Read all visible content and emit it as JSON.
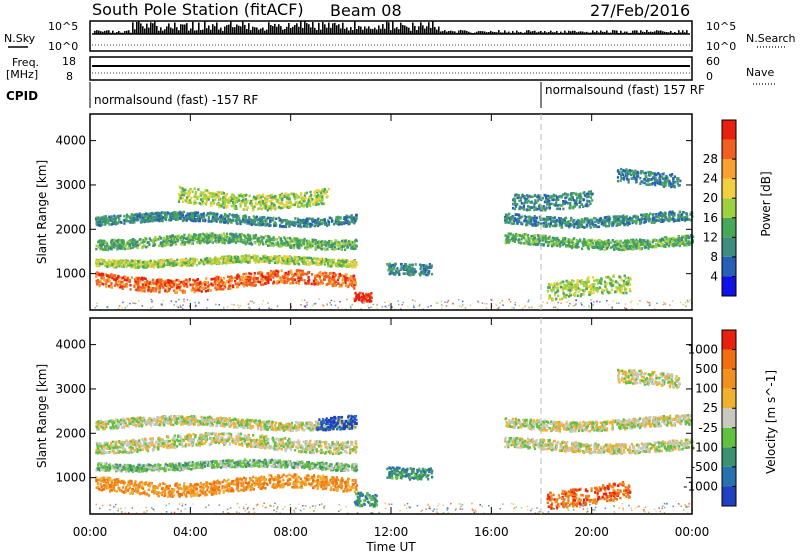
{
  "header": {
    "station": "South Pole Station (fitACF)",
    "beam": "Beam 08",
    "date": "27/Feb/2016"
  },
  "top_panels": {
    "nsky_label": "N.Sky",
    "nsky_ticks": [
      "10^5",
      "10^0"
    ],
    "nsearch_label": "N.Search",
    "nsearch_ticks": [
      "10^5",
      "10^0"
    ],
    "freq_label_1": "Freq.",
    "freq_label_2": "[MHz]",
    "freq_ticks": [
      "18",
      "8"
    ],
    "nave_label": "Nave",
    "nave_ticks": [
      "60",
      "0"
    ],
    "cpid_label": "CPID",
    "cpid_left": "normalsound (fast) -157 RF",
    "cpid_right": "normalsound (fast) 157 RF"
  },
  "chart_data": [
    {
      "type": "heatmap",
      "name": "power",
      "ylabel": "Slant Range [km]",
      "xlabel": "Time UT",
      "x_ticks": [
        "00:00",
        "04:00",
        "08:00",
        "12:00",
        "16:00",
        "20:00",
        "00:00"
      ],
      "x_range_hours": [
        0,
        24
      ],
      "y_range_km": [
        180,
        4600
      ],
      "y_ticks": [
        1000,
        2000,
        3000,
        4000
      ],
      "colorbar": {
        "label": "Power [dB]",
        "ticks": [
          "4",
          "8",
          "12",
          "16",
          "20",
          "24",
          "28"
        ],
        "colors": [
          "#1010e8",
          "#2860b8",
          "#3c8c80",
          "#48a858",
          "#a0d040",
          "#f0d040",
          "#f8a030",
          "#f06020",
          "#e82010"
        ]
      },
      "bands": [
        {
          "t0": 0.2,
          "t1": 10.6,
          "r_center": 850,
          "r_width": 300,
          "level": 7
        },
        {
          "t0": 0.2,
          "t1": 10.6,
          "r_center": 1300,
          "r_width": 160,
          "level": 4
        },
        {
          "t0": 0.2,
          "t1": 10.6,
          "r_center": 1750,
          "r_width": 220,
          "level": 3
        },
        {
          "t0": 0.2,
          "t1": 10.6,
          "r_center": 2250,
          "r_width": 200,
          "level": 2
        },
        {
          "t0": 3.5,
          "t1": 9.5,
          "r_center": 2750,
          "r_width": 350,
          "level": 4
        },
        {
          "t0": 10.5,
          "t1": 11.2,
          "r_center": 450,
          "r_width": 200,
          "level": 8
        },
        {
          "t0": 11.8,
          "t1": 13.6,
          "r_center": 1200,
          "r_width": 250,
          "level": 2
        },
        {
          "t0": 16.5,
          "t1": 24.0,
          "r_center": 1750,
          "r_width": 220,
          "level": 3
        },
        {
          "t0": 16.5,
          "t1": 24.0,
          "r_center": 2250,
          "r_width": 220,
          "level": 2
        },
        {
          "t0": 16.8,
          "t1": 20.0,
          "r_center": 2750,
          "r_width": 350,
          "level": 2
        },
        {
          "t0": 18.2,
          "t1": 21.5,
          "r_center": 650,
          "r_width": 400,
          "level": 4
        },
        {
          "t0": 21.0,
          "t1": 23.5,
          "r_center": 3200,
          "r_width": 300,
          "level": 2
        }
      ]
    },
    {
      "type": "heatmap",
      "name": "velocity",
      "ylabel": "Slant Range [km]",
      "xlabel": "Time UT",
      "x_ticks": [
        "00:00",
        "04:00",
        "08:00",
        "12:00",
        "16:00",
        "20:00",
        "00:00"
      ],
      "x_range_hours": [
        0,
        24
      ],
      "y_range_km": [
        180,
        4600
      ],
      "y_ticks": [
        1000,
        2000,
        3000,
        4000
      ],
      "colorbar": {
        "label": "Velocity [m s^-1]",
        "ticks": [
          "1000",
          "500",
          "100",
          "25",
          "-25",
          "-100",
          "-500",
          "-1000"
        ],
        "colors": [
          "#2040c0",
          "#2870b0",
          "#3a9070",
          "#60c040",
          "#c8c8c0",
          "#f0b030",
          "#f09020",
          "#f07010",
          "#e82010"
        ]
      },
      "bands": [
        {
          "t0": 0.2,
          "t1": 10.6,
          "r_center": 850,
          "r_width": 300,
          "level": 6
        },
        {
          "t0": 0.2,
          "t1": 10.6,
          "r_center": 1300,
          "r_width": 160,
          "level": 3
        },
        {
          "t0": 0.2,
          "t1": 10.6,
          "r_center": 1800,
          "r_width": 280,
          "level": 4
        },
        {
          "t0": 0.2,
          "t1": 10.6,
          "r_center": 2250,
          "r_width": 200,
          "level": 4
        },
        {
          "t0": 9.0,
          "t1": 10.6,
          "r_center": 2200,
          "r_width": 300,
          "level": 0
        },
        {
          "t0": 10.5,
          "t1": 11.4,
          "r_center": 450,
          "r_width": 300,
          "level": 2
        },
        {
          "t0": 11.8,
          "t1": 13.6,
          "r_center": 1200,
          "r_width": 250,
          "level": 2
        },
        {
          "t0": 16.5,
          "t1": 24.0,
          "r_center": 1750,
          "r_width": 220,
          "level": 4
        },
        {
          "t0": 16.5,
          "t1": 24.0,
          "r_center": 2250,
          "r_width": 220,
          "level": 4
        },
        {
          "t0": 18.2,
          "t1": 21.5,
          "r_center": 650,
          "r_width": 400,
          "level": 7
        },
        {
          "t0": 21.0,
          "t1": 23.5,
          "r_center": 3200,
          "r_width": 300,
          "level": 4
        }
      ]
    }
  ]
}
